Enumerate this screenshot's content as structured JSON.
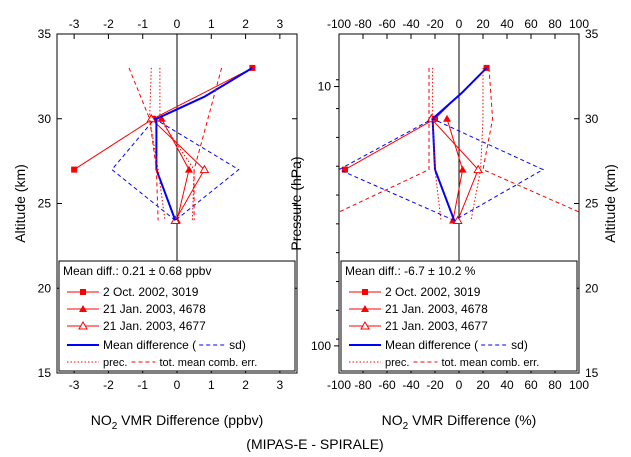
{
  "caption": "(MIPAS-E - SPIRALE)",
  "chart_data": [
    {
      "type": "line",
      "panel": "left",
      "xlabel_main": "NO",
      "xlabel_sub": "2",
      "xlabel_rest": " VMR Difference (ppbv)",
      "ylabel": "Altitude (km)",
      "xlim": [
        -3.5,
        3.5
      ],
      "ylim": [
        15,
        35
      ],
      "xticks": [
        -3,
        -2,
        -1,
        0,
        1,
        2,
        3
      ],
      "xtick_labels": [
        "-3",
        "-2",
        "-1",
        "0",
        "1",
        "2",
        "3"
      ],
      "yticks": [
        15,
        20,
        25,
        30,
        35
      ],
      "ytick_labels": [
        "15",
        "20",
        "25",
        "30",
        "35"
      ],
      "vertical_zero_line": 0,
      "series": [
        {
          "name": "2 Oct. 2002, 3019",
          "marker": "square-filled",
          "color": "#ff0000",
          "style": "solid",
          "points": [
            [
              -3.0,
              27
            ],
            [
              -0.7,
              30
            ],
            [
              2.2,
              33
            ]
          ]
        },
        {
          "name": "21 Jan. 2003, 4678",
          "marker": "triangle-filled",
          "color": "#ff0000",
          "style": "solid",
          "points": [
            [
              0.0,
              24
            ],
            [
              0.35,
              27
            ],
            [
              -0.45,
              30
            ]
          ]
        },
        {
          "name": "21 Jan. 2003, 4677",
          "marker": "triangle-open",
          "color": "#ff0000",
          "style": "solid",
          "points": [
            [
              -0.05,
              24
            ],
            [
              0.8,
              27
            ],
            [
              -0.75,
              30
            ]
          ]
        },
        {
          "name": "Mean difference (",
          "role": "mean",
          "color": "#0000ff",
          "style": "solid-thick",
          "points": [
            [
              -0.05,
              24
            ],
            [
              -0.6,
              27
            ],
            [
              -0.6,
              29
            ],
            [
              -0.6,
              30
            ],
            [
              0.8,
              31.3
            ],
            [
              2.2,
              33
            ]
          ]
        },
        {
          "name": "sd)",
          "role": "sd",
          "color": "#0000ff",
          "style": "dashed",
          "points": [
            [
              -0.05,
              24
            ],
            [
              -1.9,
              27
            ],
            [
              -0.65,
              30
            ],
            [
              1.8,
              27
            ],
            [
              -0.05,
              24
            ]
          ]
        },
        {
          "name": "prec.",
          "role": "prec",
          "color": "#ff0000",
          "style": "dotted",
          "lines": [
            [
              [
                -0.75,
                33
              ],
              [
                -0.8,
                30
              ],
              [
                -0.55,
                27
              ],
              [
                -0.35,
                24
              ]
            ],
            [
              [
                -0.5,
                33
              ],
              [
                -0.5,
                30
              ],
              [
                0.5,
                27
              ],
              [
                0.45,
                24
              ]
            ]
          ]
        },
        {
          "name": "tot. mean comb. err.",
          "role": "total",
          "color": "#ff0000",
          "style": "dashed",
          "lines": [
            [
              [
                -1.4,
                33
              ],
              [
                -0.8,
                30
              ],
              [
                -0.6,
                27
              ],
              [
                -0.55,
                24
              ]
            ],
            [
              [
                1.3,
                33
              ],
              [
                0.9,
                30
              ],
              [
                0.5,
                27
              ],
              [
                0.5,
                24
              ]
            ]
          ]
        }
      ],
      "legend_title": "Mean diff.: 0.21 ± 0.68 ppbv"
    },
    {
      "type": "line",
      "panel": "right",
      "xlabel_main": "NO",
      "xlabel_sub": "2",
      "xlabel_rest": " VMR Difference (%)",
      "ylabel_left": "Pressure (hPa)",
      "ylabel_right": "Altitude (km)",
      "xlim": [
        -100,
        100
      ],
      "ylim": [
        15,
        35
      ],
      "xticks": [
        -100,
        -80,
        -60,
        -40,
        -20,
        0,
        20,
        40,
        60,
        80,
        100
      ],
      "xtick_labels_top": [
        "-100",
        "-80",
        "-60",
        "-40",
        "-20",
        "0",
        "20",
        "40",
        "60",
        "80",
        "100"
      ],
      "xtick_labels_bottom": [
        "-100",
        "-80",
        "-60",
        "-40",
        "-20",
        "0",
        "20",
        "40",
        "60",
        "80",
        "100"
      ],
      "yticks_right": [
        15,
        20,
        25,
        30,
        35
      ],
      "ytick_labels_right": [
        "15",
        "20",
        "25",
        "30",
        "35"
      ],
      "pressure_ticks": [
        {
          "hPa": 10,
          "alt": 31.9
        },
        {
          "hPa": 100,
          "alt": 16.6
        }
      ],
      "pressure_labels": [
        "10",
        "100"
      ],
      "vertical_zero_line": 0,
      "series": [
        {
          "name": "2 Oct. 2002, 3019",
          "marker": "square-filled",
          "color": "#ff0000",
          "style": "solid",
          "points": [
            [
              -95,
              27
            ],
            [
              -20,
              30
            ],
            [
              23,
              33
            ]
          ]
        },
        {
          "name": "21 Jan. 2003, 4678",
          "marker": "triangle-filled",
          "color": "#ff0000",
          "style": "solid",
          "points": [
            [
              -5,
              24
            ],
            [
              3,
              27
            ],
            [
              -10,
              30
            ]
          ]
        },
        {
          "name": "21 Jan. 2003, 4677",
          "marker": "triangle-open",
          "color": "#ff0000",
          "style": "solid",
          "points": [
            [
              -1,
              24
            ],
            [
              16,
              27
            ],
            [
              -23,
              30
            ]
          ]
        },
        {
          "name": "Mean difference (",
          "role": "mean",
          "color": "#0000ff",
          "style": "solid-thick",
          "points": [
            [
              -4,
              24
            ],
            [
              -20,
              27
            ],
            [
              -22,
              30
            ],
            [
              2,
              31.5
            ],
            [
              23,
              33
            ]
          ]
        },
        {
          "name": "sd)",
          "role": "sd",
          "color": "#0000ff",
          "style": "dashed",
          "points": [
            [
              -4,
              24
            ],
            [
              -100,
              27
            ],
            [
              -22,
              30
            ],
            [
              70,
              27
            ],
            [
              -4,
              24
            ]
          ]
        },
        {
          "name": "prec.",
          "role": "prec",
          "color": "#ff0000",
          "style": "dotted",
          "lines": [
            [
              [
                -22,
                33
              ],
              [
                -22,
                30
              ],
              [
                -20,
                27
              ],
              [
                -15,
                24
              ]
            ],
            [
              [
                20,
                33
              ],
              [
                20,
                30
              ],
              [
                18,
                27
              ],
              [
                10,
                24
              ]
            ]
          ]
        },
        {
          "name": "tot. mean comb. err.",
          "role": "total",
          "color": "#ff0000",
          "style": "dashed",
          "lines": [
            [
              [
                -25,
                33
              ],
              [
                -25,
                30
              ],
              [
                -25,
                27
              ],
              [
                -100,
                24.5
              ]
            ],
            [
              [
                25,
                33
              ],
              [
                28,
                30
              ],
              [
                20,
                27
              ],
              [
                100,
                24.5
              ]
            ]
          ]
        }
      ],
      "legend_title": "Mean diff.: -6.7 ± 10.2 %"
    }
  ]
}
